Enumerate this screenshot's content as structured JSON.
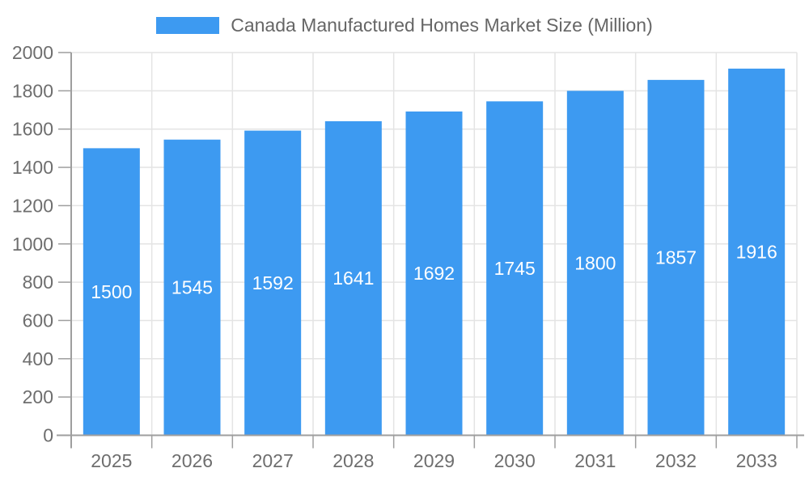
{
  "legend": {
    "label": "Canada Manufactured Homes Market Size (Million)"
  },
  "chart_data": {
    "type": "bar",
    "title": "Canada Manufactured Homes Market Size (Million)",
    "categories": [
      "2025",
      "2026",
      "2027",
      "2028",
      "2029",
      "2030",
      "2031",
      "2032",
      "2033"
    ],
    "values": [
      1500,
      1545,
      1592,
      1641,
      1692,
      1745,
      1800,
      1857,
      1916
    ],
    "xlabel": "",
    "ylabel": "",
    "ylim": [
      0,
      2000
    ],
    "ytick_step": 200,
    "grid": true,
    "legend_position": "top-center",
    "value_labels": "inside-middle",
    "colors": {
      "bar": "#3D9AF1",
      "value_label": "#FFFFFF",
      "axis": "#9E9E9E",
      "grid": "#E4E4E4",
      "tick_label": "#6E6E6E",
      "legend_text": "#666666",
      "background": "#FFFFFF"
    }
  }
}
